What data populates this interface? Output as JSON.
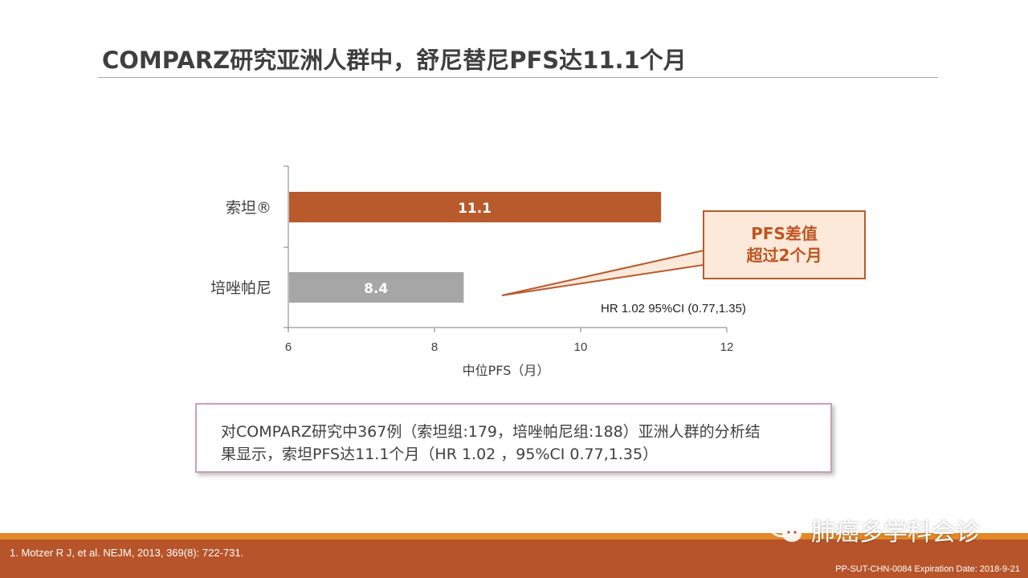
{
  "slide": {
    "title": "COMPARZ研究亚洲人群中，舒尼替尼PFS达11.1个月"
  },
  "chart_data": {
    "type": "bar",
    "orientation": "horizontal",
    "categories": [
      "索坦®",
      "培唑帕尼"
    ],
    "values": [
      11.1,
      8.4
    ],
    "value_labels": [
      "11.1",
      "8.4"
    ],
    "bar_colors": [
      "#b85a2c",
      "#a6a6a6"
    ],
    "xlabel": "中位PFS（月）",
    "ylabel": "",
    "title": "",
    "xlim": [
      6,
      12
    ],
    "xticks": [
      6,
      8,
      10,
      12
    ],
    "grid": false,
    "legend": "none"
  },
  "callout": {
    "line1": "PFS差值",
    "line2": "超过2个月"
  },
  "hr_note": "HR 1.02 95%CI (0.77,1.35)",
  "summary": {
    "line1": "对COMPARZ研究中367例（索坦组:179，培唑帕尼组:188）亚洲人群的分析结",
    "line2": "果显示，索坦PFS达11.1个月（HR  1.02  ，95%CI  0.77,1.35）"
  },
  "footer": {
    "reference": "1. Motzer R J, et al. NEJM, 2013, 369(8): 722-731.",
    "code": "PP-SUT-CHN-0084 Expiration Date: 2018-9-21",
    "watermark": "肺癌多学科会诊",
    "watermark_icon": "wechat-icon"
  },
  "colors": {
    "accent": "#b85a2c",
    "footer_bar": "#b7542a",
    "footer_stripe": "#e28a2a",
    "callout_fill": "#fce9d9"
  }
}
